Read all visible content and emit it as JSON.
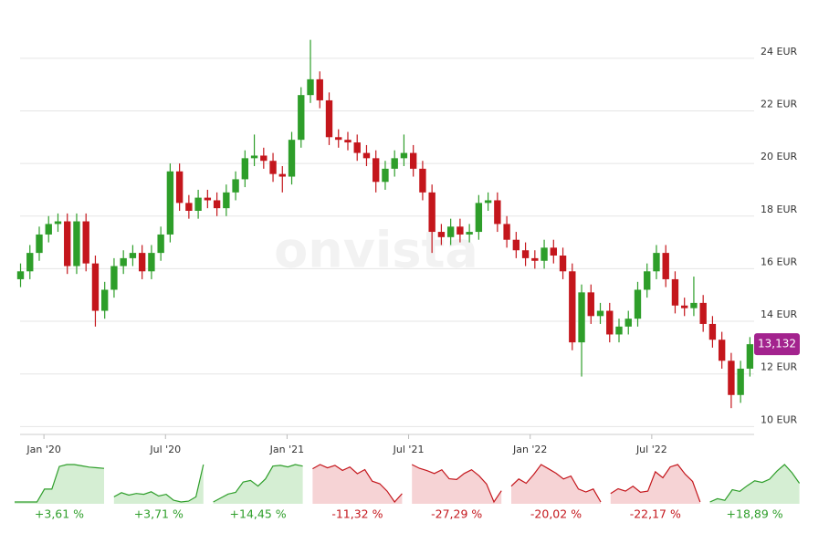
{
  "chart_data": [
    {
      "type": "candlestick",
      "watermark": "onvista",
      "up_color": "#2e9e2a",
      "down_color": "#c4161c",
      "x": [
        -5,
        -3,
        -1,
        1,
        3,
        5,
        7,
        9,
        11,
        13,
        15,
        17,
        19,
        21,
        23,
        25,
        27,
        29,
        31,
        33,
        35,
        37,
        39,
        41,
        43,
        45,
        47,
        49,
        51,
        53,
        55,
        57,
        59,
        61,
        63,
        65,
        67,
        69,
        71,
        73,
        75,
        77,
        79,
        81,
        83,
        85,
        87,
        89,
        91,
        93,
        95,
        97,
        99,
        101,
        103,
        105,
        107,
        109,
        111,
        113,
        115,
        117,
        119,
        121,
        123,
        125,
        127,
        129,
        131,
        133,
        135,
        137,
        139,
        141,
        143,
        145,
        147,
        149,
        151
      ],
      "open": [
        15.6,
        15.9,
        16.6,
        17.3,
        17.7,
        17.8,
        16.1,
        17.8,
        16.2,
        14.4,
        15.2,
        16.1,
        16.4,
        16.6,
        15.9,
        16.6,
        17.3,
        19.7,
        18.5,
        18.2,
        18.7,
        18.6,
        18.3,
        18.9,
        19.4,
        20.2,
        20.3,
        20.1,
        19.6,
        19.5,
        20.9,
        22.6,
        23.2,
        22.4,
        21.0,
        20.9,
        20.8,
        20.4,
        20.2,
        19.3,
        19.8,
        20.2,
        20.4,
        19.8,
        18.9,
        17.4,
        17.2,
        17.6,
        17.3,
        17.4,
        18.5,
        18.6,
        17.7,
        17.1,
        16.7,
        16.4,
        16.3,
        16.8,
        16.5,
        15.9,
        13.2,
        15.1,
        14.2,
        14.4,
        13.5,
        13.8,
        14.1,
        15.2,
        15.9,
        16.6,
        15.6,
        14.6,
        14.5,
        14.7,
        13.9,
        13.3,
        12.5,
        11.2,
        12.2
      ],
      "high": [
        16.2,
        16.9,
        17.6,
        18.0,
        18.1,
        18.1,
        18.1,
        18.1,
        16.5,
        15.5,
        16.4,
        16.7,
        16.9,
        16.9,
        16.9,
        17.6,
        20.0,
        20.0,
        18.8,
        19.0,
        19.0,
        18.9,
        19.2,
        19.7,
        20.5,
        21.1,
        20.6,
        20.4,
        19.9,
        21.2,
        22.9,
        24.7,
        23.5,
        22.7,
        21.3,
        21.2,
        21.1,
        20.7,
        20.5,
        20.1,
        20.5,
        21.1,
        20.7,
        20.1,
        19.2,
        17.7,
        17.9,
        17.9,
        17.7,
        18.8,
        18.9,
        18.9,
        18.0,
        17.4,
        17.0,
        16.7,
        17.1,
        17.1,
        16.8,
        16.2,
        15.4,
        15.4,
        14.7,
        14.7,
        14.1,
        14.4,
        15.5,
        16.2,
        16.9,
        16.9,
        15.9,
        14.9,
        15.7,
        15.0,
        14.2,
        13.6,
        12.8,
        12.5,
        13.4
      ],
      "low": [
        15.3,
        15.6,
        16.3,
        17.0,
        17.4,
        15.8,
        15.8,
        15.9,
        13.8,
        14.1,
        14.9,
        15.8,
        16.1,
        15.6,
        15.6,
        16.3,
        17.0,
        18.2,
        17.9,
        17.9,
        18.3,
        18.0,
        18.0,
        18.6,
        19.1,
        19.9,
        19.8,
        19.3,
        18.9,
        19.2,
        20.6,
        22.3,
        22.1,
        20.7,
        20.6,
        20.5,
        20.1,
        19.9,
        18.9,
        19.0,
        19.5,
        19.9,
        19.5,
        18.6,
        16.6,
        16.9,
        16.9,
        17.0,
        17.0,
        17.1,
        18.2,
        17.4,
        16.8,
        16.4,
        16.1,
        16.0,
        16.0,
        16.2,
        15.6,
        12.9,
        11.9,
        13.9,
        13.9,
        13.2,
        13.2,
        13.5,
        13.8,
        14.9,
        15.6,
        15.3,
        14.3,
        14.2,
        14.2,
        13.6,
        13.0,
        12.2,
        10.7,
        10.9,
        11.9
      ],
      "close": [
        15.9,
        16.6,
        17.3,
        17.7,
        17.8,
        16.1,
        17.8,
        16.2,
        14.4,
        15.2,
        16.1,
        16.4,
        16.6,
        15.9,
        16.6,
        17.3,
        19.7,
        18.5,
        18.2,
        18.7,
        18.6,
        18.3,
        18.9,
        19.4,
        20.2,
        20.3,
        20.1,
        19.6,
        19.5,
        20.9,
        22.6,
        23.2,
        22.4,
        21.0,
        20.9,
        20.8,
        20.4,
        20.2,
        19.3,
        19.8,
        20.2,
        20.4,
        19.8,
        18.9,
        17.4,
        17.2,
        17.6,
        17.3,
        17.4,
        18.5,
        18.6,
        17.7,
        17.1,
        16.7,
        16.4,
        16.3,
        16.8,
        16.5,
        15.9,
        13.2,
        15.1,
        14.2,
        14.4,
        13.5,
        13.8,
        14.1,
        15.2,
        15.9,
        16.6,
        15.6,
        14.6,
        14.5,
        14.7,
        13.9,
        13.3,
        12.5,
        11.2,
        12.2,
        13.13
      ],
      "xlim": [
        -5.1,
        151.9
      ],
      "xticks": [
        {
          "value": 0,
          "label": "Jan '20"
        },
        {
          "value": 26,
          "label": "Jul '20"
        },
        {
          "value": 52,
          "label": "Jan '21"
        },
        {
          "value": 78,
          "label": "Jul '21"
        },
        {
          "value": 104,
          "label": "Jan '22"
        },
        {
          "value": 130,
          "label": "Jul '22"
        }
      ],
      "ylim": [
        9.7,
        25
      ],
      "yticks": [
        {
          "value": 10,
          "label": "10 EUR"
        },
        {
          "value": 12,
          "label": "12 EUR"
        },
        {
          "value": 14,
          "label": "14 EUR"
        },
        {
          "value": 16,
          "label": "16 EUR"
        },
        {
          "value": 18,
          "label": "18 EUR"
        },
        {
          "value": 20,
          "label": "20 EUR"
        },
        {
          "value": 22,
          "label": "22 EUR"
        },
        {
          "value": 24,
          "label": "24 EUR"
        }
      ],
      "grid": true,
      "last_price": 13.132,
      "last_price_label": "13,132",
      "last_price_color": "#a3238e"
    },
    {
      "type": "sparkline",
      "up_color": "#2e9e2a",
      "down_color": "#c4161c",
      "up_fill": "#d5eed3",
      "down_fill": "#f6d3d5",
      "tiles": [
        {
          "values": [
            1,
            1,
            1,
            1,
            3,
            3,
            6.5,
            6.8,
            6.8,
            6.6,
            6.4,
            6.3,
            6.2
          ],
          "change": 3.61,
          "change_label": "+3,61 %"
        },
        {
          "values": [
            3,
            3.5,
            3.2,
            3.4,
            3.3,
            3.6,
            3.1,
            3.3,
            2.6,
            2.4,
            2.5,
            3,
            6.8
          ],
          "change": 3.71,
          "change_label": "+3,71 %"
        },
        {
          "values": [
            0,
            0.5,
            1,
            1.2,
            2.5,
            2.7,
            2,
            2.9,
            4.5,
            4.6,
            4.4,
            4.7,
            4.5
          ],
          "change": 14.45,
          "change_label": "+14,45 %"
        },
        {
          "values": [
            5,
            5.5,
            5.1,
            5.4,
            4.8,
            5.2,
            4.4,
            4.9,
            3.5,
            3.2,
            2.3,
            1,
            2
          ],
          "change": -11.32,
          "change_label": "-11,32 %"
        },
        {
          "values": [
            6,
            5.5,
            5.2,
            4.8,
            5.3,
            4.1,
            4,
            4.8,
            5.3,
            4.5,
            3.4,
            1,
            2.5
          ],
          "change": -27.29,
          "change_label": "-27,29 %"
        },
        {
          "values": [
            4,
            4.5,
            4.2,
            4.8,
            5.5,
            5.2,
            4.9,
            4.5,
            4.7,
            3.8,
            3.6,
            3.8,
            2.9
          ],
          "change": -20.02,
          "change_label": "-20,02 %"
        },
        {
          "values": [
            3,
            3.4,
            3.2,
            3.6,
            3.1,
            3.2,
            4.8,
            4.3,
            5.2,
            5.4,
            4.6,
            4,
            2.3
          ],
          "change": -22.17,
          "change_label": "-22,17 %"
        },
        {
          "values": [
            1,
            1.4,
            1.2,
            2.5,
            2.3,
            3,
            3.6,
            3.4,
            3.8,
            4.8,
            5.6,
            4.6,
            3.3
          ],
          "change": 18.89,
          "change_label": "+18,89 %"
        }
      ]
    }
  ]
}
